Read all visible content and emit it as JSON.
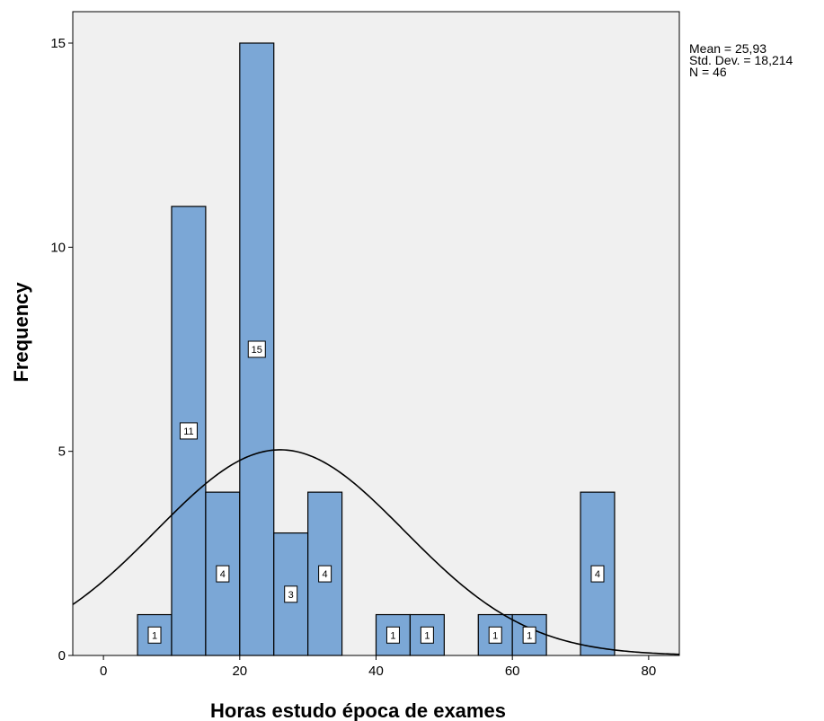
{
  "chart_data": {
    "type": "bar",
    "subtype": "histogram",
    "xlabel": "Horas estudo época de exames",
    "ylabel": "Frequency",
    "xlim": [
      -4.5,
      84.5
    ],
    "ylim": [
      0,
      15.5
    ],
    "x_ticks": [
      "0",
      "20",
      "40",
      "60",
      "80"
    ],
    "y_ticks": [
      "0",
      "5",
      "10",
      "15"
    ],
    "bin_width": 5,
    "bins": [
      {
        "start": 5,
        "end": 10,
        "count": 1,
        "label": "1"
      },
      {
        "start": 10,
        "end": 15,
        "count": 11,
        "label": "11"
      },
      {
        "start": 15,
        "end": 20,
        "count": 4,
        "label": "4"
      },
      {
        "start": 20,
        "end": 25,
        "count": 15,
        "label": "15"
      },
      {
        "start": 25,
        "end": 30,
        "count": 3,
        "label": "3"
      },
      {
        "start": 30,
        "end": 35,
        "count": 4,
        "label": "4"
      },
      {
        "start": 40,
        "end": 45,
        "count": 1,
        "label": "1"
      },
      {
        "start": 45,
        "end": 50,
        "count": 1,
        "label": "1"
      },
      {
        "start": 55,
        "end": 60,
        "count": 1,
        "label": "1"
      },
      {
        "start": 60,
        "end": 65,
        "count": 1,
        "label": "1"
      },
      {
        "start": 70,
        "end": 75,
        "count": 4,
        "label": "4"
      }
    ],
    "normal_curve": {
      "mean": 25.93,
      "sd": 18.214,
      "n": 46
    },
    "stats_text": [
      "Mean = 25,93",
      "Std. Dev. = 18,214",
      "N = 46"
    ],
    "colors": {
      "bar_fill": "#7ba7d6",
      "bar_stroke": "#000000",
      "plot_bg": "#f0f0f0",
      "curve": "#000000"
    },
    "grid": false,
    "legend": "none"
  }
}
